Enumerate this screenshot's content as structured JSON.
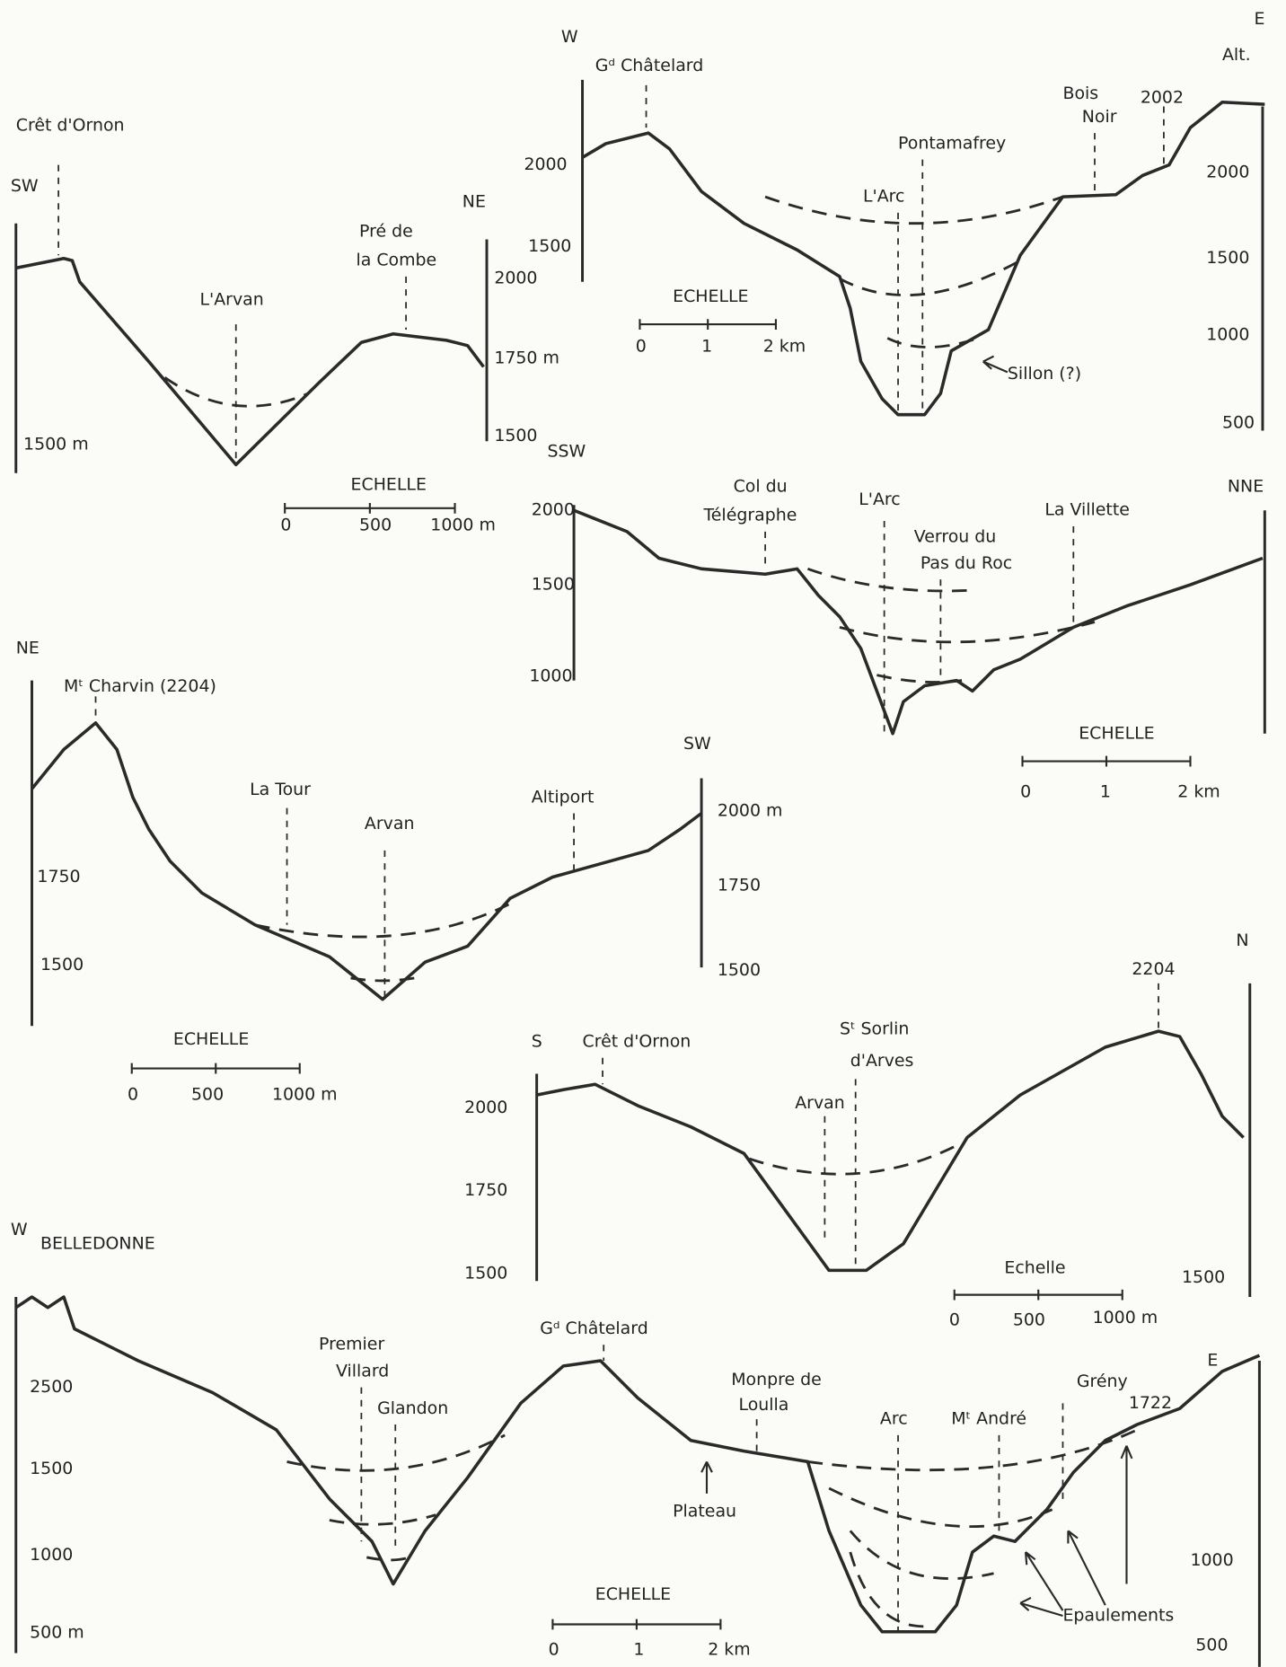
{
  "profiles": [
    {
      "orientations": [
        "SW",
        "NE"
      ],
      "labels": [
        "Crêt d'Ornon",
        "Pré de",
        "la Combe",
        "L'Arvan"
      ],
      "left_axis": [
        "1500 m"
      ],
      "right_axis": [
        "2000",
        "1750 m",
        "1500"
      ],
      "scale": {
        "title": "ECHELLE",
        "ticks": [
          "0",
          "500",
          "1000 m"
        ]
      }
    },
    {
      "orientations": [
        "W",
        "E"
      ],
      "labels": [
        "Alt.",
        "Gᵈ Châtelard",
        "Pontamafrey",
        "L'Arc",
        "Bois",
        "Noir",
        "2002",
        "Sillon (?)"
      ],
      "left_axis": [
        "2000",
        "1500"
      ],
      "right_axis": [
        "2000",
        "1500",
        "1000",
        "500"
      ],
      "scale": {
        "title": "ECHELLE",
        "ticks": [
          "0",
          "1",
          "2 km"
        ]
      }
    },
    {
      "orientations": [
        "SSW",
        "NNE"
      ],
      "labels": [
        "Col du",
        "Télégraphe",
        "L'Arc",
        "Verrou du",
        "Pas du Roc",
        "La Villette"
      ],
      "left_axis": [
        "2000",
        "1500",
        "1000"
      ],
      "scale": {
        "title": "ECHELLE",
        "ticks": [
          "0",
          "1",
          "2 km"
        ]
      }
    },
    {
      "orientations": [
        "NE",
        "SW"
      ],
      "labels": [
        "Mᵗ Charvin (2204)",
        "La Tour",
        "Arvan",
        "Altiport"
      ],
      "left_axis": [
        "1750",
        "1500"
      ],
      "right_axis": [
        "2000 m",
        "1750",
        "1500"
      ],
      "scale": {
        "title": "ECHELLE",
        "ticks": [
          "0",
          "500",
          "1000 m"
        ]
      }
    },
    {
      "orientations": [
        "S",
        "N"
      ],
      "labels": [
        "2204",
        "Crêt d'Ornon",
        "Sᵗ Sorlin",
        "d'Arves",
        "Arvan"
      ],
      "left_axis": [
        "2000",
        "1750",
        "1500"
      ],
      "right_axis": [
        "1500"
      ],
      "scale": {
        "title": "Echelle",
        "ticks": [
          "0",
          "500",
          "1000 m"
        ]
      }
    },
    {
      "orientations": [
        "W",
        "E"
      ],
      "labels": [
        "BELLEDONNE",
        "Gᵈ Châtelard",
        "Premier",
        "Villard",
        "Glandon",
        "Monpre de",
        "Loulla",
        "Arc",
        "Mᵗ André",
        "Grény",
        "1722",
        "Plateau",
        "Epaulements"
      ],
      "left_axis": [
        "2500",
        "1500",
        "1000",
        "500 m"
      ],
      "right_axis": [
        "1000",
        "500"
      ],
      "scale": {
        "title": "ECHELLE",
        "ticks": [
          "0",
          "1",
          "2 km"
        ]
      }
    }
  ]
}
